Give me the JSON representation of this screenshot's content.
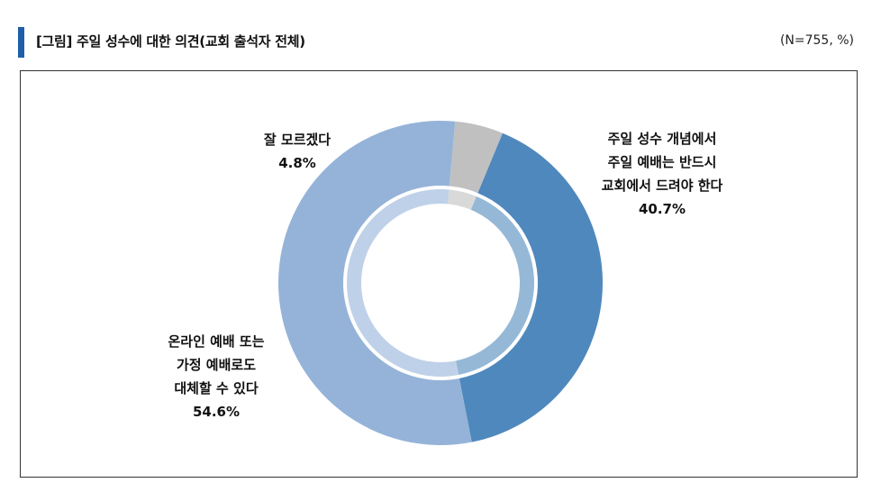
{
  "header": {
    "title": "[그림] 주일 성수에 대한 의견(교회 출석자 전체)",
    "note": "(N=755, %)"
  },
  "chart_data": {
    "type": "donut",
    "title": "[그림] 주일 성수에 대한 의견(교회 출석자 전체)",
    "sample": "(N=755, %)",
    "unit": "%",
    "slices": [
      {
        "label": "주일 성수 개념에서\n주일 예배는 반드시\n교회에서 드려야 한다",
        "value": 40.7,
        "value_text": "40.7%",
        "color": "#4f88bd"
      },
      {
        "label": "온라인 예배 또는\n가정 예배로도\n대체할 수 있다",
        "value": 54.6,
        "value_text": "54.6%",
        "color": "#95b3d8"
      },
      {
        "label": "잘 모르겠다",
        "value": 4.8,
        "value_text": "4.8%",
        "color": "#c0c0c0"
      }
    ]
  }
}
